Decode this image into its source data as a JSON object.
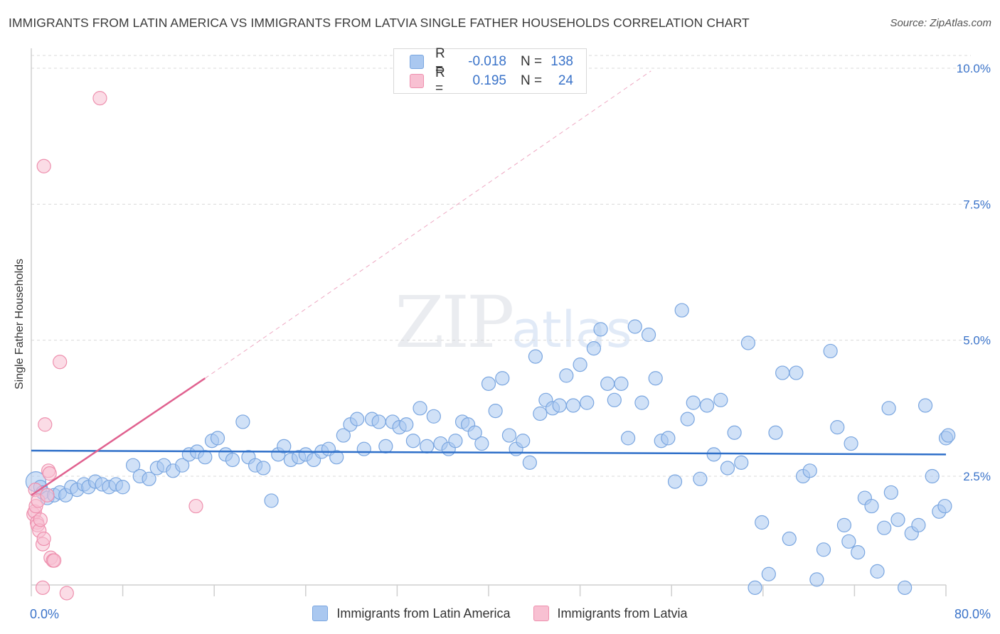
{
  "title": "IMMIGRANTS FROM LATIN AMERICA VS IMMIGRANTS FROM LATVIA SINGLE FATHER HOUSEHOLDS CORRELATION CHART",
  "source": "Source: ZipAtlas.com",
  "watermark": {
    "zip": "ZIP",
    "atlas": "atlas"
  },
  "legend": {
    "rows": [
      {
        "r_label": "R =",
        "r_value": "-0.018",
        "n_label": "N =",
        "n_value": "138",
        "color": "#aac8f0",
        "border": "#7aa6e0"
      },
      {
        "r_label": "R =",
        "r_value": "0.195",
        "n_label": "N =",
        "n_value": "24",
        "color": "#f8c0d2",
        "border": "#ee90ae"
      }
    ]
  },
  "colors": {
    "blue_fill": "#aac8f0",
    "blue_stroke": "#7aa6e0",
    "blue_line": "#2e6fc9",
    "pink_fill": "#f8c0d2",
    "pink_stroke": "#ee90ae",
    "pink_line": "#e0618f",
    "axis_text": "#3a73c9",
    "grid": "#d9d9d9"
  },
  "chart_data": {
    "type": "scatter",
    "ylabel": "Single Father Households",
    "xlabel": "",
    "xlim": [
      0,
      80
    ],
    "ylim": [
      0,
      10.5
    ],
    "x_tick_labels": [
      {
        "v": 0,
        "label": "0.0%"
      },
      {
        "v": 80,
        "label": "80.0%"
      }
    ],
    "x_minor_ticks": [
      0,
      8,
      16,
      24,
      32,
      40,
      48,
      56,
      64,
      72,
      80
    ],
    "y_ticks": [
      {
        "v": 2.5,
        "label": "2.5%"
      },
      {
        "v": 5.0,
        "label": "5.0%"
      },
      {
        "v": 7.5,
        "label": "7.5%"
      },
      {
        "v": 10.0,
        "label": "10.0%"
      }
    ],
    "grid": true,
    "series": [
      {
        "name": "Immigrants from Latin America",
        "color": "blue",
        "trend": {
          "x": [
            0,
            80
          ],
          "y": [
            2.97,
            2.9
          ],
          "style": "solid"
        },
        "points": [
          [
            0.4,
            2.4
          ],
          [
            0.8,
            2.3
          ],
          [
            1.0,
            2.2
          ],
          [
            1.4,
            2.1
          ],
          [
            2.0,
            2.15
          ],
          [
            2.5,
            2.2
          ],
          [
            3.0,
            2.15
          ],
          [
            3.5,
            2.3
          ],
          [
            4.0,
            2.25
          ],
          [
            4.6,
            2.35
          ],
          [
            5.0,
            2.3
          ],
          [
            5.6,
            2.4
          ],
          [
            6.2,
            2.35
          ],
          [
            6.8,
            2.3
          ],
          [
            7.4,
            2.35
          ],
          [
            8.0,
            2.3
          ],
          [
            8.9,
            2.7
          ],
          [
            9.5,
            2.5
          ],
          [
            10.3,
            2.45
          ],
          [
            11.0,
            2.65
          ],
          [
            11.6,
            2.7
          ],
          [
            12.4,
            2.6
          ],
          [
            13.2,
            2.7
          ],
          [
            13.8,
            2.9
          ],
          [
            14.5,
            2.95
          ],
          [
            15.2,
            2.85
          ],
          [
            15.8,
            3.15
          ],
          [
            16.3,
            3.2
          ],
          [
            17.0,
            2.9
          ],
          [
            17.6,
            2.8
          ],
          [
            18.5,
            3.5
          ],
          [
            19.0,
            2.85
          ],
          [
            19.6,
            2.7
          ],
          [
            20.3,
            2.65
          ],
          [
            21.0,
            2.05
          ],
          [
            21.6,
            2.9
          ],
          [
            22.1,
            3.05
          ],
          [
            22.7,
            2.8
          ],
          [
            23.4,
            2.85
          ],
          [
            24.0,
            2.9
          ],
          [
            24.7,
            2.8
          ],
          [
            25.4,
            2.95
          ],
          [
            26.0,
            3.0
          ],
          [
            26.7,
            2.85
          ],
          [
            27.3,
            3.25
          ],
          [
            27.9,
            3.45
          ],
          [
            28.5,
            3.55
          ],
          [
            29.1,
            3.0
          ],
          [
            29.8,
            3.55
          ],
          [
            30.4,
            3.5
          ],
          [
            31.0,
            3.05
          ],
          [
            31.6,
            3.5
          ],
          [
            32.2,
            3.4
          ],
          [
            32.8,
            3.45
          ],
          [
            33.4,
            3.15
          ],
          [
            34.0,
            3.75
          ],
          [
            34.6,
            3.05
          ],
          [
            35.2,
            3.6
          ],
          [
            35.8,
            3.1
          ],
          [
            36.5,
            3.0
          ],
          [
            37.1,
            3.15
          ],
          [
            37.7,
            3.5
          ],
          [
            38.2,
            3.45
          ],
          [
            38.8,
            3.3
          ],
          [
            39.4,
            3.1
          ],
          [
            40.0,
            4.2
          ],
          [
            40.6,
            3.7
          ],
          [
            41.2,
            4.3
          ],
          [
            41.8,
            3.25
          ],
          [
            42.4,
            3.0
          ],
          [
            43.0,
            3.15
          ],
          [
            43.6,
            2.75
          ],
          [
            44.1,
            4.7
          ],
          [
            44.5,
            3.65
          ],
          [
            45.0,
            3.9
          ],
          [
            45.6,
            3.75
          ],
          [
            46.2,
            3.8
          ],
          [
            46.8,
            4.35
          ],
          [
            47.4,
            3.8
          ],
          [
            48.0,
            4.55
          ],
          [
            48.6,
            3.85
          ],
          [
            49.2,
            4.85
          ],
          [
            49.8,
            5.2
          ],
          [
            50.4,
            4.2
          ],
          [
            51.0,
            3.9
          ],
          [
            51.6,
            4.2
          ],
          [
            52.2,
            3.2
          ],
          [
            52.8,
            5.25
          ],
          [
            53.4,
            3.85
          ],
          [
            54.0,
            5.1
          ],
          [
            54.6,
            4.3
          ],
          [
            55.1,
            3.15
          ],
          [
            55.7,
            3.2
          ],
          [
            56.3,
            2.4
          ],
          [
            56.9,
            5.55
          ],
          [
            57.4,
            3.55
          ],
          [
            57.9,
            3.85
          ],
          [
            58.5,
            2.45
          ],
          [
            59.1,
            3.8
          ],
          [
            59.7,
            2.9
          ],
          [
            60.3,
            3.9
          ],
          [
            60.9,
            2.65
          ],
          [
            61.5,
            3.3
          ],
          [
            62.1,
            2.75
          ],
          [
            62.7,
            4.95
          ],
          [
            63.3,
            0.45
          ],
          [
            63.9,
            1.65
          ],
          [
            64.5,
            0.7
          ],
          [
            65.1,
            3.3
          ],
          [
            65.7,
            4.4
          ],
          [
            66.3,
            1.35
          ],
          [
            66.9,
            4.4
          ],
          [
            67.5,
            2.5
          ],
          [
            68.1,
            2.6
          ],
          [
            68.7,
            0.6
          ],
          [
            69.3,
            1.15
          ],
          [
            69.9,
            4.8
          ],
          [
            70.5,
            3.4
          ],
          [
            71.1,
            1.6
          ],
          [
            71.7,
            3.1
          ],
          [
            72.3,
            1.1
          ],
          [
            72.9,
            2.1
          ],
          [
            73.5,
            1.95
          ],
          [
            74.0,
            0.75
          ],
          [
            74.6,
            1.55
          ],
          [
            75.2,
            2.2
          ],
          [
            75.8,
            1.7
          ],
          [
            76.4,
            0.45
          ],
          [
            77.0,
            1.45
          ],
          [
            77.6,
            1.6
          ],
          [
            78.2,
            3.8
          ],
          [
            78.8,
            2.5
          ],
          [
            79.4,
            1.85
          ],
          [
            80.0,
            3.2
          ],
          [
            75.0,
            3.75
          ],
          [
            71.5,
            1.3
          ],
          [
            79.9,
            1.95
          ],
          [
            80.2,
            3.25
          ]
        ]
      },
      {
        "name": "Immigrants from Latvia",
        "color": "pink",
        "trend": {
          "x": [
            0,
            15.2
          ],
          "y": [
            2.15,
            4.3
          ],
          "style": "solid",
          "extended": {
            "x": [
              15.2,
              54.2
            ],
            "y": [
              4.3,
              9.95
            ],
            "style": "dashed"
          }
        },
        "points": [
          [
            0.2,
            1.8
          ],
          [
            0.3,
            1.85
          ],
          [
            0.35,
            2.25
          ],
          [
            0.4,
            1.95
          ],
          [
            0.5,
            1.65
          ],
          [
            0.55,
            1.6
          ],
          [
            0.6,
            2.05
          ],
          [
            0.7,
            1.5
          ],
          [
            0.8,
            1.7
          ],
          [
            1.0,
            1.25
          ],
          [
            1.0,
            0.45
          ],
          [
            1.1,
            1.35
          ],
          [
            1.1,
            8.2
          ],
          [
            1.2,
            3.45
          ],
          [
            1.4,
            2.15
          ],
          [
            1.5,
            2.6
          ],
          [
            1.6,
            2.55
          ],
          [
            1.7,
            1.0
          ],
          [
            1.9,
            0.95
          ],
          [
            2.0,
            0.95
          ],
          [
            2.5,
            4.6
          ],
          [
            3.1,
            0.35
          ],
          [
            6.0,
            9.45
          ],
          [
            14.4,
            1.95
          ]
        ]
      }
    ]
  }
}
